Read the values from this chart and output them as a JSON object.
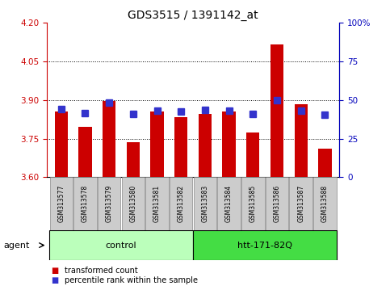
{
  "title": "GDS3515 / 1391142_at",
  "samples": [
    "GSM313577",
    "GSM313578",
    "GSM313579",
    "GSM313580",
    "GSM313581",
    "GSM313582",
    "GSM313583",
    "GSM313584",
    "GSM313585",
    "GSM313586",
    "GSM313587",
    "GSM313588"
  ],
  "bar_values": [
    3.855,
    3.795,
    3.895,
    3.735,
    3.855,
    3.835,
    3.845,
    3.855,
    3.775,
    4.115,
    3.885,
    3.71
  ],
  "blue_values": [
    3.865,
    3.85,
    3.89,
    3.845,
    3.86,
    3.855,
    3.862,
    3.858,
    3.847,
    3.9,
    3.858,
    3.843
  ],
  "bar_color": "#cc0000",
  "blue_color": "#3333cc",
  "ylim_left": [
    3.6,
    4.2
  ],
  "yticks_left": [
    3.6,
    3.75,
    3.9,
    4.05,
    4.2
  ],
  "yticks_right": [
    0,
    25,
    50,
    75,
    100
  ],
  "groups": [
    {
      "label": "control",
      "start": 0,
      "end": 6,
      "color": "#bbffbb"
    },
    {
      "label": "htt-171-82Q",
      "start": 6,
      "end": 12,
      "color": "#44dd44"
    }
  ],
  "agent_label": "agent",
  "legend_items": [
    {
      "label": "transformed count",
      "color": "#cc0000"
    },
    {
      "label": "percentile rank within the sample",
      "color": "#3333cc"
    }
  ],
  "left_axis_color": "#cc0000",
  "right_axis_color": "#0000bb",
  "title_color": "#000000",
  "grid_color": "#000000",
  "bar_baseline": 3.6,
  "blue_marker_size": 6,
  "bar_width": 0.55,
  "sample_box_color": "#cccccc",
  "sample_box_edge": "#888888"
}
